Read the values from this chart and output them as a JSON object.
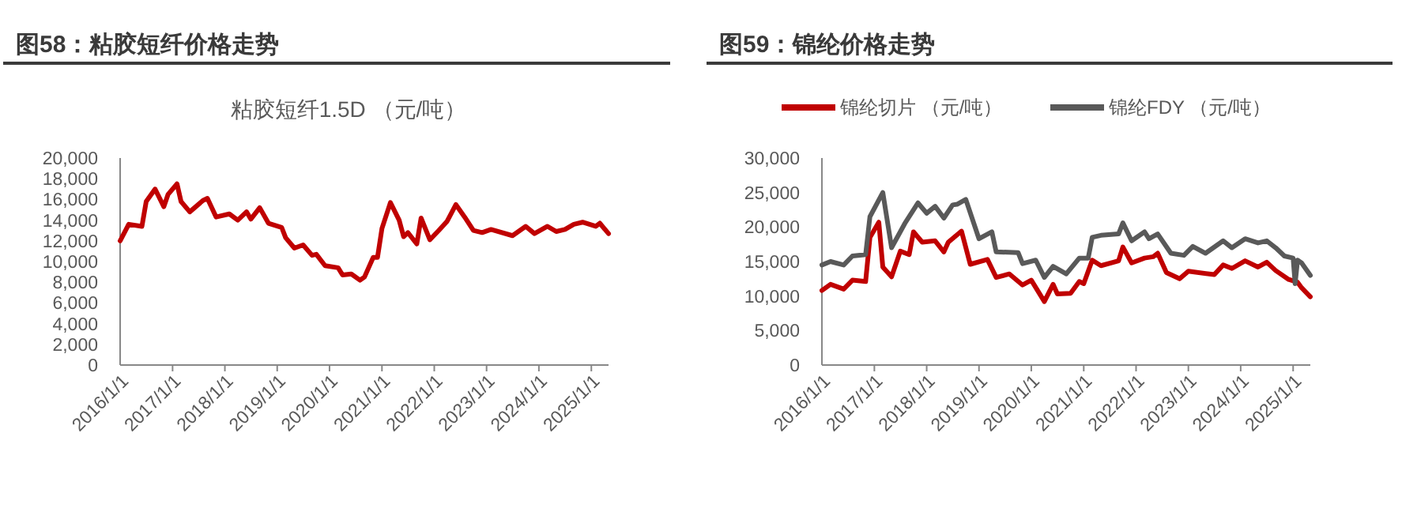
{
  "chart_data": [
    {
      "type": "line",
      "title": "图58：粘胶短纤价格走势",
      "subtitle": "粘胶短纤1.5D （元/吨）",
      "x": [
        "2016-01",
        "2016-03",
        "2016-06",
        "2016-07",
        "2016-09",
        "2016-11",
        "2016-12",
        "2017-02",
        "2017-03",
        "2017-05",
        "2017-08",
        "2017-09",
        "2017-11",
        "2018-02",
        "2018-04",
        "2018-06",
        "2018-07",
        "2018-09",
        "2018-11",
        "2019-02",
        "2019-03",
        "2019-05",
        "2019-07",
        "2019-09",
        "2019-10",
        "2019-12",
        "2020-03",
        "2020-04",
        "2020-06",
        "2020-08",
        "2020-09",
        "2020-11",
        "2020-12",
        "2021-01",
        "2021-03",
        "2021-05",
        "2021-06",
        "2021-07",
        "2021-09",
        "2021-10",
        "2021-12",
        "2022-02",
        "2022-04",
        "2022-06",
        "2022-08",
        "2022-10",
        "2022-12",
        "2023-02",
        "2023-07",
        "2023-10",
        "2023-12",
        "2024-03",
        "2024-05",
        "2024-07",
        "2024-09",
        "2024-11",
        "2025-02",
        "2025-03",
        "2025-05"
      ],
      "series": [
        {
          "color": "#c00000",
          "values": [
            12000,
            13600,
            13400,
            15800,
            17000,
            15300,
            16500,
            17500,
            15800,
            14800,
            15900,
            16100,
            14300,
            14600,
            14000,
            14800,
            14100,
            15200,
            13700,
            13300,
            12300,
            11300,
            11600,
            10600,
            10700,
            9600,
            9400,
            8700,
            8800,
            8200,
            8500,
            10400,
            10400,
            13200,
            15700,
            14000,
            12400,
            12800,
            11700,
            14200,
            12100,
            13000,
            13900,
            15500,
            14300,
            13000,
            12800,
            13100,
            12500,
            13400,
            12700,
            13400,
            12900,
            13100,
            13600,
            13800,
            13400,
            13700,
            12700
          ]
        }
      ],
      "xlim": [
        "2016-01",
        "2025-05"
      ],
      "xticks": [
        {
          "value": "2016-01",
          "label": "2016/1/1"
        },
        {
          "value": "2017-01",
          "label": "2017/1/1"
        },
        {
          "value": "2018-01",
          "label": "2018/1/1"
        },
        {
          "value": "2019-01",
          "label": "2019/1/1"
        },
        {
          "value": "2020-01",
          "label": "2020/1/1"
        },
        {
          "value": "2021-01",
          "label": "2021/1/1"
        },
        {
          "value": "2022-01",
          "label": "2022/1/1"
        },
        {
          "value": "2023-01",
          "label": "2023/1/1"
        },
        {
          "value": "2024-01",
          "label": "2024/1/1"
        },
        {
          "value": "2025-01",
          "label": "2025/1/1"
        }
      ],
      "ylim": [
        0,
        20000
      ],
      "yticks": [
        {
          "value": 0,
          "label": "0"
        },
        {
          "value": 2000,
          "label": "2,000"
        },
        {
          "value": 4000,
          "label": "4,000"
        },
        {
          "value": 6000,
          "label": "6,000"
        },
        {
          "value": 8000,
          "label": "8,000"
        },
        {
          "value": 10000,
          "label": "10,000"
        },
        {
          "value": 12000,
          "label": "12,000"
        },
        {
          "value": 14000,
          "label": "14,000"
        },
        {
          "value": 16000,
          "label": "16,000"
        },
        {
          "value": 18000,
          "label": "18,000"
        },
        {
          "value": 20000,
          "label": "20,000"
        }
      ],
      "grid": false,
      "legend": false
    },
    {
      "type": "line",
      "title": "图59：锦纶价格走势",
      "x": [
        "2016-01",
        "2016-03",
        "2016-06",
        "2016-08",
        "2016-11",
        "2016-12",
        "2017-02",
        "2017-03",
        "2017-05",
        "2017-07",
        "2017-09",
        "2017-10",
        "2017-12",
        "2018-03",
        "2018-05",
        "2018-06",
        "2018-09",
        "2018-11",
        "2019-03",
        "2019-05",
        "2019-08",
        "2019-11",
        "2020-01",
        "2020-04",
        "2020-06",
        "2020-07",
        "2020-10",
        "2020-12",
        "2021-01",
        "2021-03",
        "2021-05",
        "2021-09",
        "2021-10",
        "2021-12",
        "2022-03",
        "2022-05",
        "2022-06",
        "2022-08",
        "2022-11",
        "2023-01",
        "2023-07",
        "2023-09",
        "2023-11",
        "2024-02",
        "2024-05",
        "2024-07",
        "2024-09",
        "2024-12",
        "2025-02",
        "2025-03",
        "2025-05"
      ],
      "series": [
        {
          "name": "锦纶切片 （元/吨）",
          "color": "#c00000",
          "values": [
            10800,
            11700,
            11000,
            12300,
            12100,
            18500,
            20700,
            14200,
            12800,
            16500,
            16000,
            19300,
            17800,
            18000,
            16400,
            17800,
            19400,
            14600,
            15300,
            12700,
            13200,
            11600,
            12300,
            9200,
            11700,
            10300,
            10400,
            12100,
            11800,
            15200,
            14400,
            15100,
            17100,
            14800,
            15500,
            15700,
            16200,
            13400,
            12500,
            13600,
            13100,
            14500,
            14000,
            15100,
            14200,
            14900,
            13700,
            12400,
            12000,
            11200,
            9900
          ]
        },
        {
          "name": "锦纶FDY （元/吨）",
          "color": "#595959",
          "x": [
            "2016-01",
            "2016-03",
            "2016-06",
            "2016-08",
            "2016-11",
            "2016-12",
            "2017-03",
            "2017-05",
            "2017-08",
            "2017-11",
            "2018-01",
            "2018-03",
            "2018-05",
            "2018-07",
            "2018-08",
            "2018-10",
            "2019-01",
            "2019-04",
            "2019-05",
            "2019-10",
            "2019-11",
            "2020-02",
            "2020-04",
            "2020-06",
            "2020-09",
            "2020-12",
            "2021-02",
            "2021-03",
            "2021-05",
            "2021-09",
            "2021-10",
            "2021-12",
            "2022-03",
            "2022-04",
            "2022-06",
            "2022-09",
            "2022-12",
            "2023-02",
            "2023-05",
            "2023-09",
            "2023-11",
            "2024-02",
            "2024-05",
            "2024-07",
            "2024-09",
            "2024-11",
            "2025-01-01",
            "2025-01-15",
            "2025-02",
            "2025-03",
            "2025-05"
          ],
          "values": [
            14500,
            15000,
            14500,
            15800,
            16000,
            21500,
            25000,
            17000,
            20500,
            23500,
            22000,
            23000,
            21300,
            23200,
            23300,
            24000,
            18300,
            19300,
            16400,
            16300,
            14700,
            15200,
            12700,
            14300,
            13200,
            15500,
            15500,
            18500,
            18800,
            19000,
            20600,
            18000,
            19300,
            18300,
            19000,
            16200,
            15900,
            17200,
            16200,
            18000,
            17000,
            18300,
            17700,
            18000,
            17000,
            15800,
            15500,
            11800,
            15200,
            14800,
            13000
          ]
        }
      ],
      "xlim": [
        "2016-01",
        "2025-05"
      ],
      "xticks": [
        {
          "value": "2016-01",
          "label": "2016/1/1"
        },
        {
          "value": "2017-01",
          "label": "2017/1/1"
        },
        {
          "value": "2018-01",
          "label": "2018/1/1"
        },
        {
          "value": "2019-01",
          "label": "2019/1/1"
        },
        {
          "value": "2020-01",
          "label": "2020/1/1"
        },
        {
          "value": "2021-01",
          "label": "2021/1/1"
        },
        {
          "value": "2022-01",
          "label": "2022/1/1"
        },
        {
          "value": "2023-01",
          "label": "2023/1/1"
        },
        {
          "value": "2024-01",
          "label": "2024/1/1"
        },
        {
          "value": "2025-01",
          "label": "2025/1/1"
        }
      ],
      "ylim": [
        0,
        30000
      ],
      "yticks": [
        {
          "value": 0,
          "label": "0"
        },
        {
          "value": 5000,
          "label": "5,000"
        },
        {
          "value": 10000,
          "label": "10,000"
        },
        {
          "value": 15000,
          "label": "15,000"
        },
        {
          "value": 20000,
          "label": "20,000"
        },
        {
          "value": 25000,
          "label": "25,000"
        },
        {
          "value": 30000,
          "label": "30,000"
        }
      ],
      "grid": false,
      "legend": "top"
    }
  ]
}
